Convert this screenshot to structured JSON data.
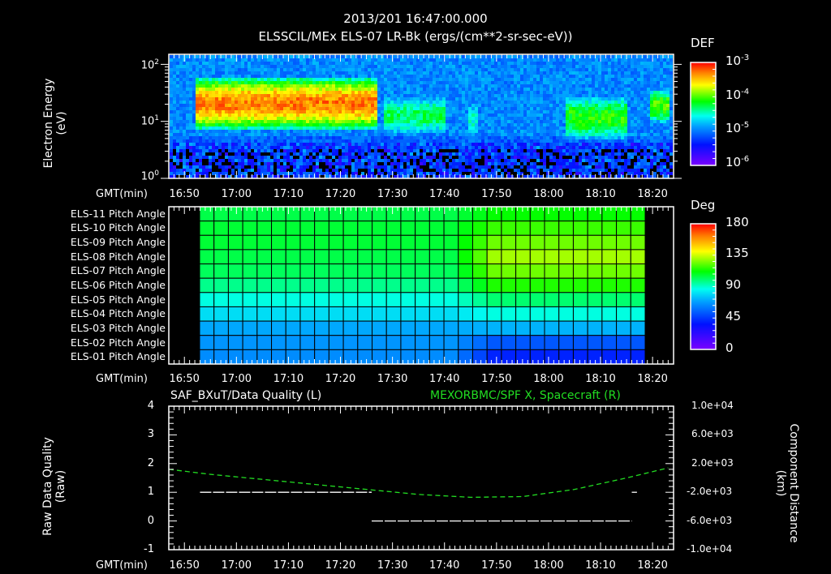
{
  "header": {
    "timestamp": "2013/201 16:47:00.000",
    "subtitle": "ELSSCIL/MEx ELS-07 LR-Bk  (ergs/(cm**2-sr-sec-eV))"
  },
  "x_axis": {
    "label": "GMT(min)",
    "ticks": [
      "16:50",
      "17:00",
      "17:10",
      "17:20",
      "17:30",
      "17:40",
      "17:50",
      "18:00",
      "18:10",
      "18:20"
    ]
  },
  "panel1": {
    "ylabel_line1": "Electron Energy",
    "ylabel_line2": "(eV)",
    "yticks": [
      {
        "base": "10",
        "exp": "2"
      },
      {
        "base": "10",
        "exp": "1"
      },
      {
        "base": "10",
        "exp": "0"
      }
    ],
    "colorbar": {
      "title": "DEF",
      "ticks": [
        {
          "base": "10",
          "exp": "-3"
        },
        {
          "base": "10",
          "exp": "-4"
        },
        {
          "base": "10",
          "exp": "-5"
        },
        {
          "base": "10",
          "exp": "-6"
        }
      ]
    }
  },
  "panel2": {
    "rows": [
      "ELS-11 Pitch Angle",
      "ELS-10 Pitch Angle",
      "ELS-09 Pitch Angle",
      "ELS-08 Pitch Angle",
      "ELS-07 Pitch Angle",
      "ELS-06 Pitch Angle",
      "ELS-05 Pitch Angle",
      "ELS-04 Pitch Angle",
      "ELS-03 Pitch Angle",
      "ELS-02 Pitch Angle",
      "ELS-01 Pitch Angle"
    ],
    "colorbar": {
      "title": "Deg",
      "ticks": [
        "180",
        "135",
        "90",
        "45",
        "0"
      ]
    }
  },
  "panel3": {
    "left_title": "SAF_BXuT/Data Quality (L)",
    "right_title": "MEXORBMC/SPF X, Spacecraft (R)",
    "ylabel_left_line1": "Raw Data Quality",
    "ylabel_left_line2": "(Raw)",
    "ylabel_right_line1": "Component Distance",
    "ylabel_right_line2": "(km)",
    "left_ticks": [
      "4",
      "3",
      "2",
      "1",
      "0",
      "-1"
    ],
    "right_ticks": [
      "1.0e+04",
      "6.0e+03",
      "2.0e+03",
      "-2.0e+03",
      "-6.0e+03",
      "-1.0e+04"
    ]
  },
  "colors": {
    "background": "#000000",
    "axis": "#ffffff",
    "right_series": "#22dd22",
    "left_series": "#ffffff"
  },
  "chart_data": [
    {
      "type": "heatmap",
      "title": "ELSSCIL/MEx ELS-07 LR-Bk (ergs/(cm**2-sr-sec-eV))",
      "xlabel": "GMT(min)",
      "ylabel": "Electron Energy (eV)",
      "x_range": [
        "16:47",
        "18:23"
      ],
      "yscale": "log",
      "ylim": [
        1,
        150
      ],
      "colorbar": {
        "label": "DEF",
        "scale": "log",
        "range": [
          1e-06,
          0.001
        ]
      },
      "features": [
        {
          "time": [
            "16:52",
            "17:27"
          ],
          "energy_eV": [
            8,
            60
          ],
          "peak_DEF": 0.0005,
          "note": "intense band, red peak ~40 eV near 16:53"
        },
        {
          "time": [
            "17:28",
            "17:40"
          ],
          "energy_eV": [
            6,
            30
          ],
          "peak_DEF": 5e-05
        },
        {
          "time": [
            "17:44",
            "17:46"
          ],
          "energy_eV": [
            5,
            25
          ],
          "peak_DEF": 3e-05
        },
        {
          "time": [
            "18:03",
            "18:15"
          ],
          "energy_eV": [
            5,
            30
          ],
          "peak_DEF": 8e-05
        },
        {
          "time": [
            "18:19",
            "18:23"
          ],
          "energy_eV": [
            10,
            40
          ],
          "peak_DEF": 0.0001
        }
      ]
    },
    {
      "type": "heatmap",
      "title": "ELS Pitch Angle",
      "xlabel": "GMT(min)",
      "rows": [
        "ELS-11",
        "ELS-10",
        "ELS-09",
        "ELS-08",
        "ELS-07",
        "ELS-06",
        "ELS-05",
        "ELS-04",
        "ELS-03",
        "ELS-02",
        "ELS-01"
      ],
      "x_range": [
        "16:53",
        "18:17"
      ],
      "colorbar": {
        "label": "Deg",
        "range": [
          0,
          180
        ],
        "ticks": [
          0,
          45,
          90,
          135,
          180
        ]
      },
      "values_before_1740": [
        104,
        106,
        106,
        104,
        102,
        97,
        88,
        80,
        70,
        66,
        64
      ],
      "values_after_1745": [
        112,
        118,
        124,
        130,
        124,
        115,
        100,
        88,
        72,
        52,
        40
      ]
    },
    {
      "type": "line",
      "xlabel": "GMT(min)",
      "series": [
        {
          "name": "SAF_BXuT/Data Quality (L)",
          "axis": "left",
          "ylim": [
            -1,
            4
          ],
          "segments": [
            {
              "x": [
                "16:53",
                "17:26"
              ],
              "y": 1
            },
            {
              "x": [
                "17:26",
                "18:16"
              ],
              "y": 0
            },
            {
              "x": [
                "18:16",
                "18:17"
              ],
              "y": 1
            }
          ]
        },
        {
          "name": "MEXORBMC/SPF X, Spacecraft (R)",
          "axis": "right",
          "ylim": [
            -10000,
            10000
          ],
          "x": [
            "16:47",
            "16:55",
            "17:05",
            "17:15",
            "17:25",
            "17:35",
            "17:45",
            "17:55",
            "18:05",
            "18:15",
            "18:23"
          ],
          "y": [
            1200,
            500,
            -200,
            -900,
            -1600,
            -2300,
            -2700,
            -2600,
            -1600,
            0,
            1400
          ]
        }
      ]
    }
  ]
}
